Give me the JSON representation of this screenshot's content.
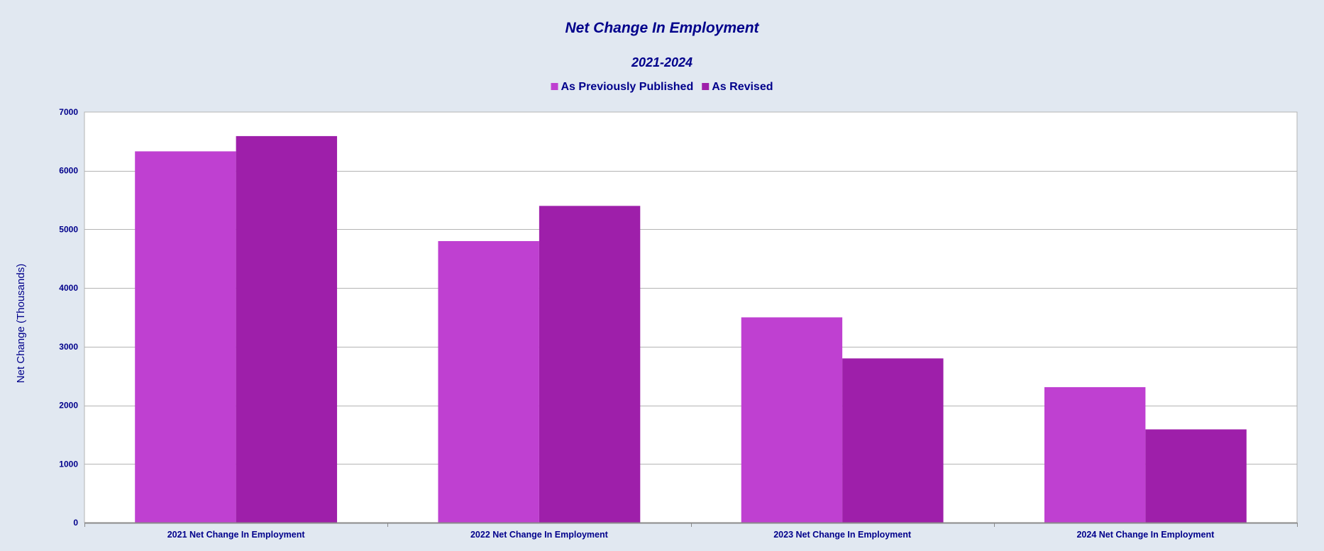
{
  "chart_data": {
    "type": "bar",
    "title": "Net Change In Employment",
    "subtitle": "2021-2024",
    "ylabel": "Net Change (Thousands)",
    "xlabel": "",
    "ylim": [
      0,
      7000
    ],
    "yticks": [
      0,
      1000,
      2000,
      3000,
      4000,
      5000,
      6000,
      7000
    ],
    "grid": true,
    "legend_position": "top-center",
    "categories": [
      "2021 Net Change In Employment",
      "2022 Net Change In Employment",
      "2023 Net Change In Employment",
      "2024 Net Change In Employment"
    ],
    "series": [
      {
        "name": "As Previously Published",
        "color": "#bf40d1",
        "values": [
          6330,
          4800,
          3500,
          2310
        ]
      },
      {
        "name": "As Revised",
        "color": "#9e1faa",
        "values": [
          6590,
          5400,
          2800,
          1590
        ]
      }
    ]
  },
  "colors": {
    "background": "#e1e8f1",
    "plot_background": "#ffffff",
    "text": "#00008b",
    "grid": "#b4b4b4"
  }
}
